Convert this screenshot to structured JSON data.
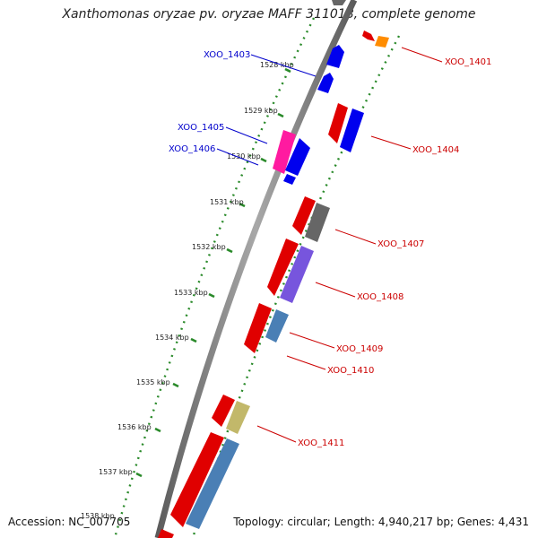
{
  "title": "Xanthomonas oryzae pv. oryzae MAFF 311018, complete genome",
  "accession": "Accession: NC_007705",
  "summary": "Topology: circular; Length: 4,940,217 bp; Genes: 4,431",
  "colors": {
    "backbone": "#7f7f7f",
    "tick_green": "#2a8a2a",
    "forward_label": "#0000cc",
    "reverse_label": "#cc0000"
  },
  "ruler_labels": [
    "1528 kbp",
    "1529 kbp",
    "1530 kbp",
    "1531 kbp",
    "1532 kbp",
    "1533 kbp",
    "1534 kbp",
    "1535 kbp",
    "1536 kbp",
    "1537 kbp",
    "1538 kbp"
  ],
  "gene_labels": [
    "XOO_1401",
    "XOO_1403",
    "XOO_1404",
    "XOO_1405",
    "XOO_1406",
    "XOO_1407",
    "XOO_1408",
    "XOO_1409",
    "XOO_1410",
    "XOO_1411"
  ]
}
